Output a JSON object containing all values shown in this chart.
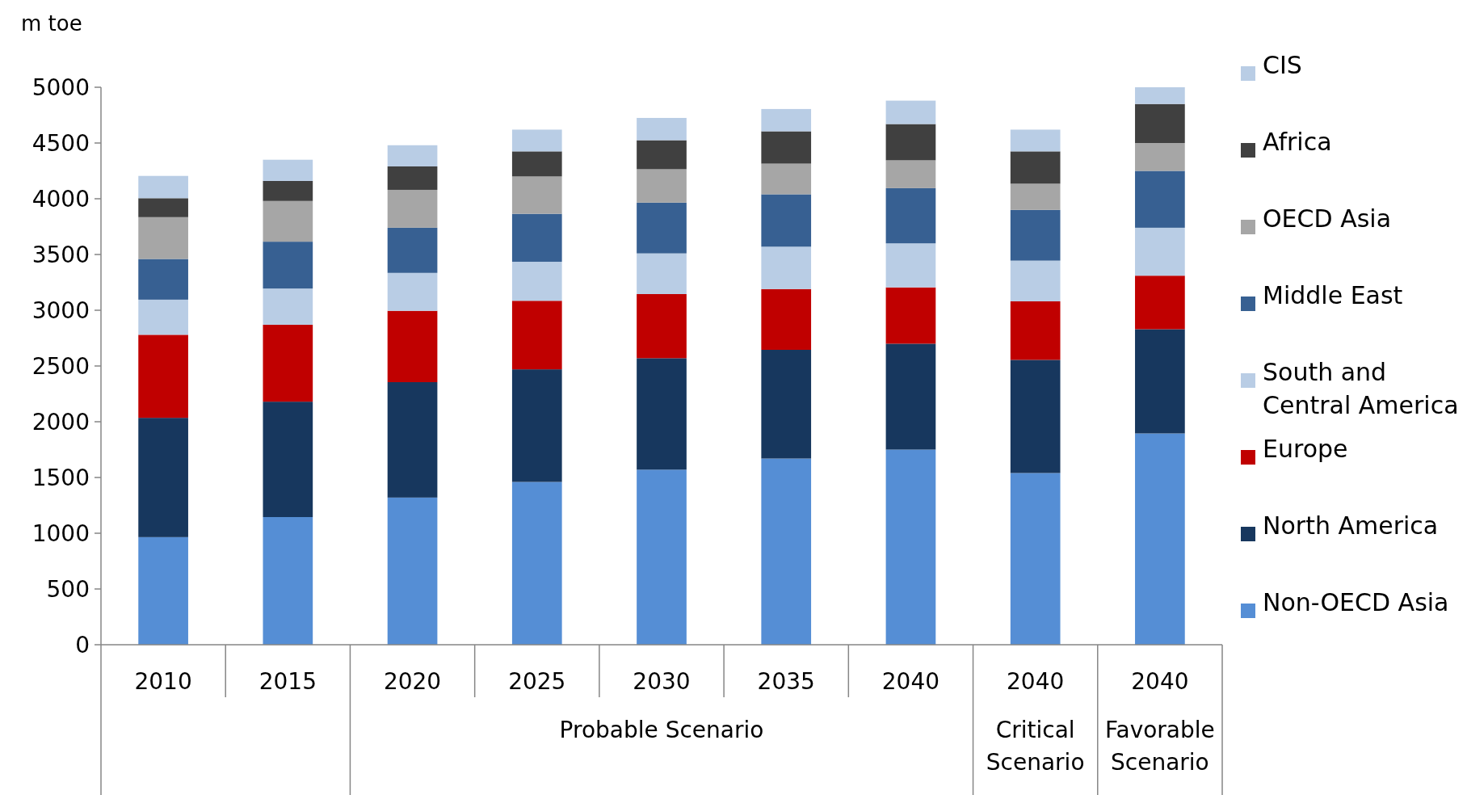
{
  "chart_data": {
    "type": "bar",
    "stacked": true,
    "ylabel": "m toe",
    "categories": [
      "2010",
      "2015",
      "2020",
      "2025",
      "2030",
      "2035",
      "2040",
      "2040",
      "2040"
    ],
    "annotations": [
      "Probable Scenario",
      "Critical Scenario",
      "Favorable Scenario"
    ],
    "ylim": [
      0,
      5000
    ],
    "yticks": [
      0,
      500,
      1000,
      1500,
      2000,
      2500,
      3000,
      3500,
      4000,
      4500,
      5000
    ],
    "grid": false,
    "legend": "right",
    "series": [
      {
        "name": "Non-OECD Asia",
        "color": "#558ed5",
        "values": [
          965,
          1145,
          1320,
          1460,
          1570,
          1670,
          1750,
          1540,
          1895
        ]
      },
      {
        "name": "North America",
        "color": "#17375e",
        "values": [
          1070,
          1035,
          1035,
          1010,
          1000,
          975,
          950,
          1015,
          935
        ]
      },
      {
        "name": "Europe",
        "color": "#c00000",
        "values": [
          745,
          690,
          640,
          615,
          575,
          545,
          505,
          525,
          480
        ]
      },
      {
        "name": "South and Central America",
        "color": "#b9cde5",
        "values": [
          315,
          325,
          340,
          350,
          365,
          380,
          395,
          365,
          430
        ]
      },
      {
        "name": "Middle East",
        "color": "#376092",
        "values": [
          365,
          420,
          405,
          430,
          455,
          470,
          495,
          455,
          510
        ]
      },
      {
        "name": "OECD Asia",
        "color": "#a6a6a6",
        "values": [
          375,
          365,
          340,
          335,
          300,
          275,
          250,
          235,
          250
        ]
      },
      {
        "name": "Africa",
        "color": "#404040",
        "values": [
          170,
          180,
          210,
          225,
          260,
          290,
          325,
          290,
          350
        ]
      },
      {
        "name": "CIS",
        "color": "#b9cde5",
        "values": [
          200,
          190,
          190,
          195,
          200,
          200,
          210,
          195,
          150
        ]
      }
    ]
  }
}
